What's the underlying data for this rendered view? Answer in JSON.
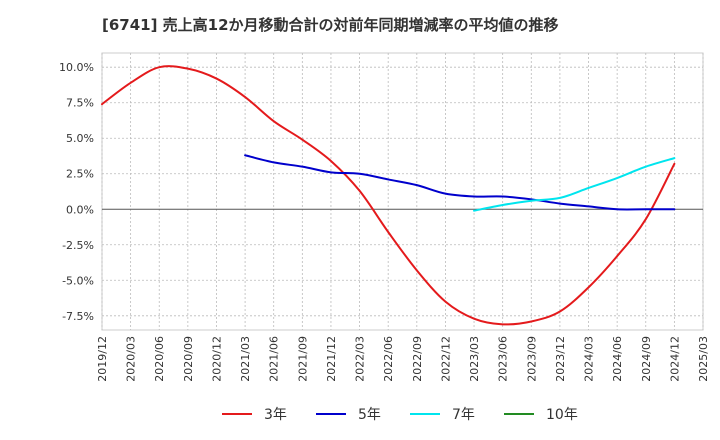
{
  "chart_data": {
    "type": "line",
    "title": "[6741]  売上高12か月移動合計の対前年同期増減率の平均値の推移",
    "xlabel": "",
    "ylabel": "",
    "x_ticks": [
      "2019/12",
      "2020/03",
      "2020/06",
      "2020/09",
      "2020/12",
      "2021/03",
      "2021/06",
      "2021/09",
      "2021/12",
      "2022/03",
      "2022/06",
      "2022/09",
      "2022/12",
      "2023/03",
      "2023/06",
      "2023/09",
      "2023/12",
      "2024/03",
      "2024/06",
      "2024/09",
      "2024/12",
      "2025/03"
    ],
    "y_ticks": [
      10.0,
      7.5,
      5.0,
      2.5,
      0.0,
      -2.5,
      -5.0,
      -7.5
    ],
    "y_tick_labels": [
      "10.0%",
      "7.5%",
      "5.0%",
      "2.5%",
      "0.0%",
      "-2.5%",
      "-5.0%",
      "-7.5%"
    ],
    "ylim": [
      -8.5,
      11.0
    ],
    "xlim": [
      "2019/12",
      "2025/03"
    ],
    "grid": true,
    "legend_position": "bottom",
    "series": [
      {
        "name": "3年",
        "color": "#e41a1c",
        "points": [
          [
            "2019/12",
            7.4
          ],
          [
            "2020/03",
            8.9
          ],
          [
            "2020/06",
            10.0
          ],
          [
            "2020/09",
            9.9
          ],
          [
            "2020/12",
            9.2
          ],
          [
            "2021/03",
            7.9
          ],
          [
            "2021/06",
            6.2
          ],
          [
            "2021/09",
            4.9
          ],
          [
            "2021/12",
            3.4
          ],
          [
            "2022/03",
            1.3
          ],
          [
            "2022/06",
            -1.6
          ],
          [
            "2022/09",
            -4.3
          ],
          [
            "2022/12",
            -6.5
          ],
          [
            "2023/03",
            -7.7
          ],
          [
            "2023/06",
            -8.1
          ],
          [
            "2023/09",
            -7.9
          ],
          [
            "2023/12",
            -7.2
          ],
          [
            "2024/03",
            -5.5
          ],
          [
            "2024/06",
            -3.3
          ],
          [
            "2024/09",
            -0.7
          ],
          [
            "2024/12",
            3.2
          ]
        ]
      },
      {
        "name": "5年",
        "color": "#0000cc",
        "points": [
          [
            "2021/03",
            3.8
          ],
          [
            "2021/06",
            3.3
          ],
          [
            "2021/09",
            3.0
          ],
          [
            "2021/12",
            2.6
          ],
          [
            "2022/03",
            2.5
          ],
          [
            "2022/06",
            2.1
          ],
          [
            "2022/09",
            1.7
          ],
          [
            "2022/12",
            1.1
          ],
          [
            "2023/03",
            0.9
          ],
          [
            "2023/06",
            0.9
          ],
          [
            "2023/09",
            0.7
          ],
          [
            "2023/12",
            0.4
          ],
          [
            "2024/03",
            0.2
          ],
          [
            "2024/06",
            0.0
          ],
          [
            "2024/09",
            0.0
          ],
          [
            "2024/12",
            0.0
          ]
        ]
      },
      {
        "name": "7年",
        "color": "#00e5ee",
        "points": [
          [
            "2023/03",
            -0.1
          ],
          [
            "2023/06",
            0.3
          ],
          [
            "2023/09",
            0.6
          ],
          [
            "2023/12",
            0.8
          ],
          [
            "2024/03",
            1.5
          ],
          [
            "2024/06",
            2.2
          ],
          [
            "2024/09",
            3.0
          ],
          [
            "2024/12",
            3.6
          ]
        ]
      },
      {
        "name": "10年",
        "color": "#228b22",
        "points": []
      }
    ]
  }
}
